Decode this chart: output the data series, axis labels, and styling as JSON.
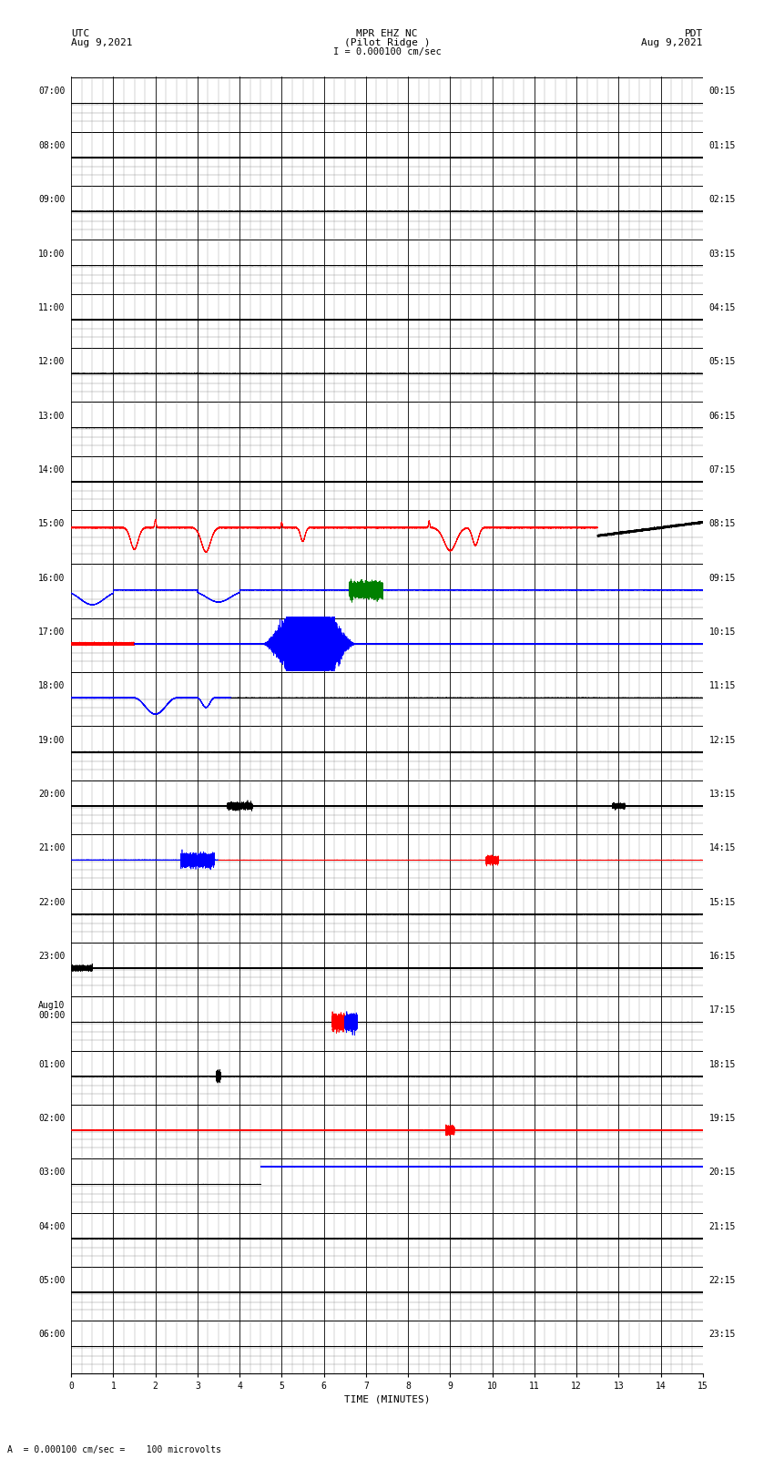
{
  "title_line1": "MPR EHZ NC",
  "title_line2": "(Pilot Ridge )",
  "scale_label": "I = 0.000100 cm/sec",
  "left_label_top": "UTC",
  "left_label_date": "Aug 9,2021",
  "right_label_top": "PDT",
  "right_label_date": "Aug 9,2021",
  "bottom_label": "A  = 0.000100 cm/sec =    100 microvolts",
  "xlabel": "TIME (MINUTES)",
  "left_times": [
    "07:00",
    "08:00",
    "09:00",
    "10:00",
    "11:00",
    "12:00",
    "13:00",
    "14:00",
    "15:00",
    "16:00",
    "17:00",
    "18:00",
    "19:00",
    "20:00",
    "21:00",
    "22:00",
    "23:00",
    "Aug10\n00:00",
    "01:00",
    "02:00",
    "03:00",
    "04:00",
    "05:00",
    "06:00"
  ],
  "right_times": [
    "00:15",
    "01:15",
    "02:15",
    "03:15",
    "04:15",
    "05:15",
    "06:15",
    "07:15",
    "08:15",
    "09:15",
    "10:15",
    "11:15",
    "12:15",
    "13:15",
    "14:15",
    "15:15",
    "16:15",
    "17:15",
    "18:15",
    "19:15",
    "20:15",
    "21:15",
    "22:15",
    "23:15"
  ],
  "num_rows": 24,
  "minutes_per_row": 15,
  "xmin": 0,
  "xmax": 15,
  "bg_color": "#ffffff",
  "major_grid_color": "#000000",
  "minor_grid_color": "#888888",
  "fig_width": 8.5,
  "fig_height": 16.13,
  "dpi": 100
}
